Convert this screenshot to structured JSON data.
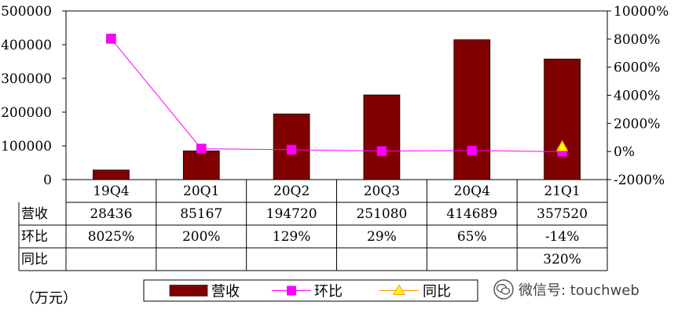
{
  "chart_data": {
    "type": "bar",
    "categories": [
      "19Q4",
      "20Q1",
      "20Q2",
      "20Q3",
      "20Q4",
      "21Q1"
    ],
    "series": [
      {
        "name": "营收",
        "type": "bar",
        "axis": "left",
        "color": "#800000",
        "values": [
          28436,
          85167,
          194720,
          251080,
          414689,
          357520
        ]
      },
      {
        "name": "环比",
        "type": "line",
        "axis": "right",
        "color": "#ff00ff",
        "marker": "square",
        "values": [
          8025,
          200,
          129,
          29,
          65,
          -14
        ]
      },
      {
        "name": "同比",
        "type": "line",
        "axis": "right",
        "color": "#ff9900",
        "marker": "triangle",
        "values": [
          null,
          null,
          null,
          null,
          null,
          320
        ]
      }
    ],
    "left_axis": {
      "min": 0,
      "max": 500000,
      "ticks": [
        "0",
        "100000",
        "200000",
        "300000",
        "400000",
        "500000"
      ]
    },
    "right_axis": {
      "min": -2000,
      "max": 10000,
      "ticks": [
        "-2000%",
        "0%",
        "2000%",
        "4000%",
        "6000%",
        "8000%",
        "10000%"
      ]
    },
    "table": {
      "rows": [
        {
          "label": "营收",
          "cells": [
            "28436",
            "85167",
            "194720",
            "251080",
            "414689",
            "357520"
          ]
        },
        {
          "label": "环比",
          "cells": [
            "8025%",
            "200%",
            "129%",
            "29%",
            "65%",
            "-14%"
          ]
        },
        {
          "label": "同比",
          "cells": [
            "",
            "",
            "",
            "",
            "",
            "320%"
          ]
        }
      ]
    },
    "legend": {
      "position": "bottom",
      "items": [
        "营收",
        "环比",
        "同比"
      ]
    },
    "unit_label": "（万元）",
    "grid": false
  },
  "watermark": {
    "text": "微信号: touchweb",
    "icon": "wechat-icon"
  }
}
